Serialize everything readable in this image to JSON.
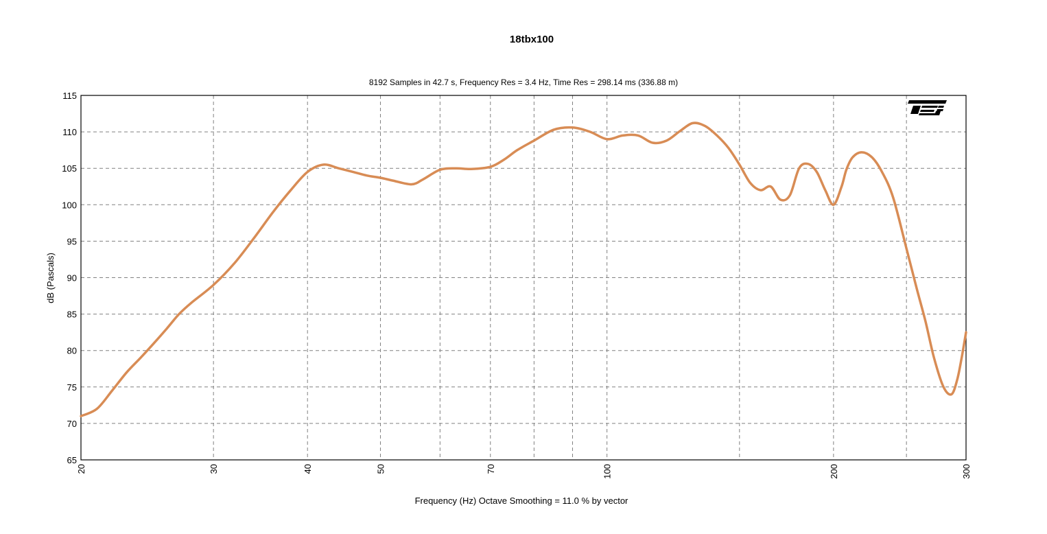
{
  "chart_data": {
    "type": "line",
    "title": "18tbx100",
    "subtitle": "8192 Samples in 42.7 s, Frequency Res = 3.4 Hz, Time Res = 298.14 ms (336.88 m)",
    "xlabel": "Frequency (Hz) Octave Smoothing = 11.0 % by vector",
    "ylabel": "dB (Pascals)",
    "x_scale": "log",
    "xlim": [
      20,
      300
    ],
    "ylim": [
      65,
      115
    ],
    "grid": true,
    "logo": "TEF",
    "x_ticks": [
      {
        "value": 20,
        "label": "20"
      },
      {
        "value": 30,
        "label": "30"
      },
      {
        "value": 40,
        "label": "40"
      },
      {
        "value": 50,
        "label": "50"
      },
      {
        "value": 70,
        "label": "70"
      },
      {
        "value": 100,
        "label": "100"
      },
      {
        "value": 200,
        "label": "200"
      },
      {
        "value": 300,
        "label": "300"
      }
    ],
    "x_minor_grid": [
      60,
      80,
      90,
      150,
      250
    ],
    "y_ticks": [
      65,
      70,
      75,
      80,
      85,
      90,
      95,
      100,
      105,
      110,
      115
    ],
    "series": [
      {
        "color": "#d88c55",
        "x": [
          20,
          21,
          22,
          23,
          24,
          25,
          26,
          27,
          28,
          30,
          32,
          34,
          36,
          38,
          40,
          42,
          44,
          46,
          48,
          50,
          52,
          55,
          57,
          60,
          63,
          66,
          70,
          73,
          76,
          80,
          85,
          90,
          95,
          100,
          105,
          110,
          115,
          120,
          125,
          130,
          135,
          140,
          145,
          150,
          155,
          160,
          165,
          170,
          175,
          180,
          185,
          190,
          195,
          200,
          205,
          208,
          212,
          218,
          225,
          232,
          240,
          250,
          258,
          265,
          272,
          280,
          287,
          292,
          296,
          300
        ],
        "y": [
          71,
          72,
          74.5,
          77,
          79,
          81,
          83,
          85,
          86.5,
          89,
          92,
          95.5,
          99,
          102,
          104.5,
          105.5,
          105,
          104.5,
          104,
          103.7,
          103.3,
          102.8,
          103.5,
          104.8,
          105,
          104.9,
          105.2,
          106.2,
          107.5,
          108.8,
          110.3,
          110.6,
          110,
          109,
          109.5,
          109.5,
          108.5,
          108.8,
          110.1,
          111.2,
          110.8,
          109.5,
          107.8,
          105.5,
          103,
          102,
          102.5,
          100.7,
          101.3,
          105,
          105.6,
          104.5,
          102,
          100,
          102.5,
          104.8,
          106.5,
          107.2,
          106.5,
          104.5,
          101,
          94,
          88.5,
          84,
          79,
          75,
          74,
          76,
          79,
          82.5
        ]
      }
    ]
  }
}
